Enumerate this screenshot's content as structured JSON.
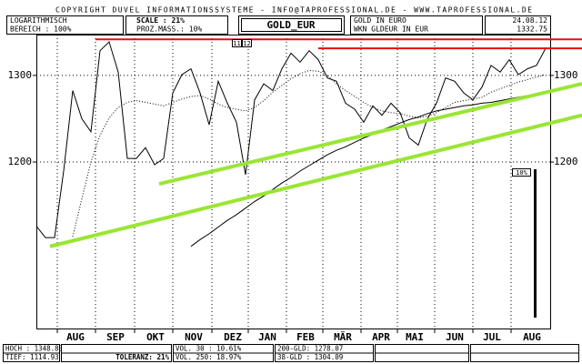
{
  "header": {
    "copyright": "COPYRIGHT  DUVEL INFORMATIONSSYSTEME - INFO@TAPROFESSIONAL.DE - WWW.TAPROFESSIONAL.DE",
    "scale_mode": "LOGARITHMISCH",
    "range": "BEREICH :   100%",
    "scale": "SCALE : 21%",
    "proz": "PROZ.MASS.: 10%",
    "name": "GOLD IN EURO",
    "wkn": "WKN GLDEUR  IN EUR",
    "date": "24.08.12",
    "last": "1332.75",
    "mark_a": "11",
    "mark_b": "12"
  },
  "footer": {
    "high": "HOCH : 1348.83",
    "low": "TIEF: 1114.93",
    "tolerance": "TOLERANZ: 21%",
    "vol30": "VOL. 30  : 10.61%",
    "vol250": "VOL. 250: 18.97%",
    "gld200": "200-GLD: 1278.07",
    "gld38": "38-GLD : 1304.09"
  },
  "chart_data": {
    "type": "line",
    "title": "GOLD_EUR",
    "log_scale": true,
    "grid": true,
    "scale_label": "10%",
    "xlim": [
      0,
      56.5
    ],
    "ylim": [
      1028,
      1350
    ],
    "yticks": [
      1200,
      1300
    ],
    "xticks": [
      {
        "value": 4.3,
        "label": "AUG"
      },
      {
        "value": 8.7,
        "label": "SEP"
      },
      {
        "value": 13.1,
        "label": "OKT"
      },
      {
        "value": 17.3,
        "label": "NOV"
      },
      {
        "value": 21.6,
        "label": "DEZ"
      },
      {
        "value": 25.4,
        "label": "JAN"
      },
      {
        "value": 29.6,
        "label": "FEB"
      },
      {
        "value": 33.7,
        "label": "MÄR"
      },
      {
        "value": 37.9,
        "label": "APR"
      },
      {
        "value": 41.6,
        "label": "MAI"
      },
      {
        "value": 46.0,
        "label": "JUN"
      },
      {
        "value": 50.1,
        "label": "JUL"
      },
      {
        "value": 54.5,
        "label": "AUG"
      }
    ],
    "xgrid": [
      2.3,
      6.5,
      10.8,
      15.0,
      19.3,
      23.3,
      27.5,
      31.5,
      35.7,
      39.7,
      43.8,
      48.0,
      52.2
    ],
    "series": [
      {
        "name": "GOLD_EUR",
        "color": "#000000",
        "style": "solid",
        "width": 1,
        "values": [
          1131,
          1119,
          1119,
          1190,
          1282,
          1249,
          1234,
          1330,
          1341,
          1304,
          1204,
          1204,
          1216,
          1197,
          1204,
          1279,
          1301,
          1308,
          1279,
          1242,
          1293,
          1267,
          1245,
          1186,
          1271,
          1290,
          1282,
          1308,
          1327,
          1316,
          1330,
          1319,
          1297,
          1293,
          1267,
          1260,
          1245,
          1264,
          1253,
          1267,
          1256,
          1227,
          1219,
          1249,
          1267,
          1297,
          1293,
          1279,
          1271,
          1286,
          1312,
          1304,
          1319,
          1301,
          1308,
          1312,
          1333
        ]
      },
      {
        "name": "38-GLD",
        "color": "#000000",
        "style": "dotted",
        "width": 1,
        "values": [
          null,
          null,
          null,
          null,
          1120,
          1160,
          1200,
          1230,
          1250,
          1262,
          1268,
          1270,
          1268,
          1266,
          1264,
          1268,
          1272,
          1275,
          1276,
          1272,
          1266,
          1262,
          1260,
          1258,
          1262,
          1270,
          1280,
          1288,
          1296,
          1302,
          1306,
          1305,
          1300,
          1290,
          1282,
          1275,
          1268,
          1262,
          1258,
          1256,
          1255,
          1252,
          1250,
          1252,
          1256,
          1262,
          1268,
          1270,
          1272,
          1274,
          1280,
          1284,
          1288,
          1292,
          1295,
          1298,
          1301
        ]
      },
      {
        "name": "200-GLD",
        "color": "#000000",
        "style": "solid",
        "width": 1,
        "values": [
          null,
          null,
          null,
          null,
          null,
          null,
          null,
          null,
          null,
          null,
          null,
          null,
          null,
          null,
          null,
          null,
          null,
          1110,
          1117,
          1123,
          1130,
          1137,
          1143,
          1150,
          1157,
          1163,
          1170,
          1177,
          1183,
          1190,
          1196,
          1202,
          1208,
          1213,
          1217,
          1222,
          1227,
          1231,
          1236,
          1240,
          1244,
          1248,
          1251,
          1255,
          1258,
          1260,
          1262,
          1264,
          1265,
          1267,
          1268,
          1270,
          1272,
          1274,
          1276,
          1277,
          1279
        ]
      }
    ],
    "lines": [
      {
        "color": "#99e633",
        "width": 4,
        "x": [
          13.5,
          60
        ],
        "values": [
          1176,
          1290
        ]
      },
      {
        "color": "#99e633",
        "width": 4,
        "x": [
          1.5,
          60
        ],
        "values": [
          1110,
          1253
        ]
      },
      {
        "color": "#e01010",
        "width": 2,
        "x": [
          6.5,
          60
        ],
        "values": [
          1344,
          1344
        ]
      },
      {
        "color": "#e01010",
        "width": 2,
        "x": [
          31,
          60
        ],
        "values": [
          1333,
          1333
        ]
      }
    ]
  }
}
